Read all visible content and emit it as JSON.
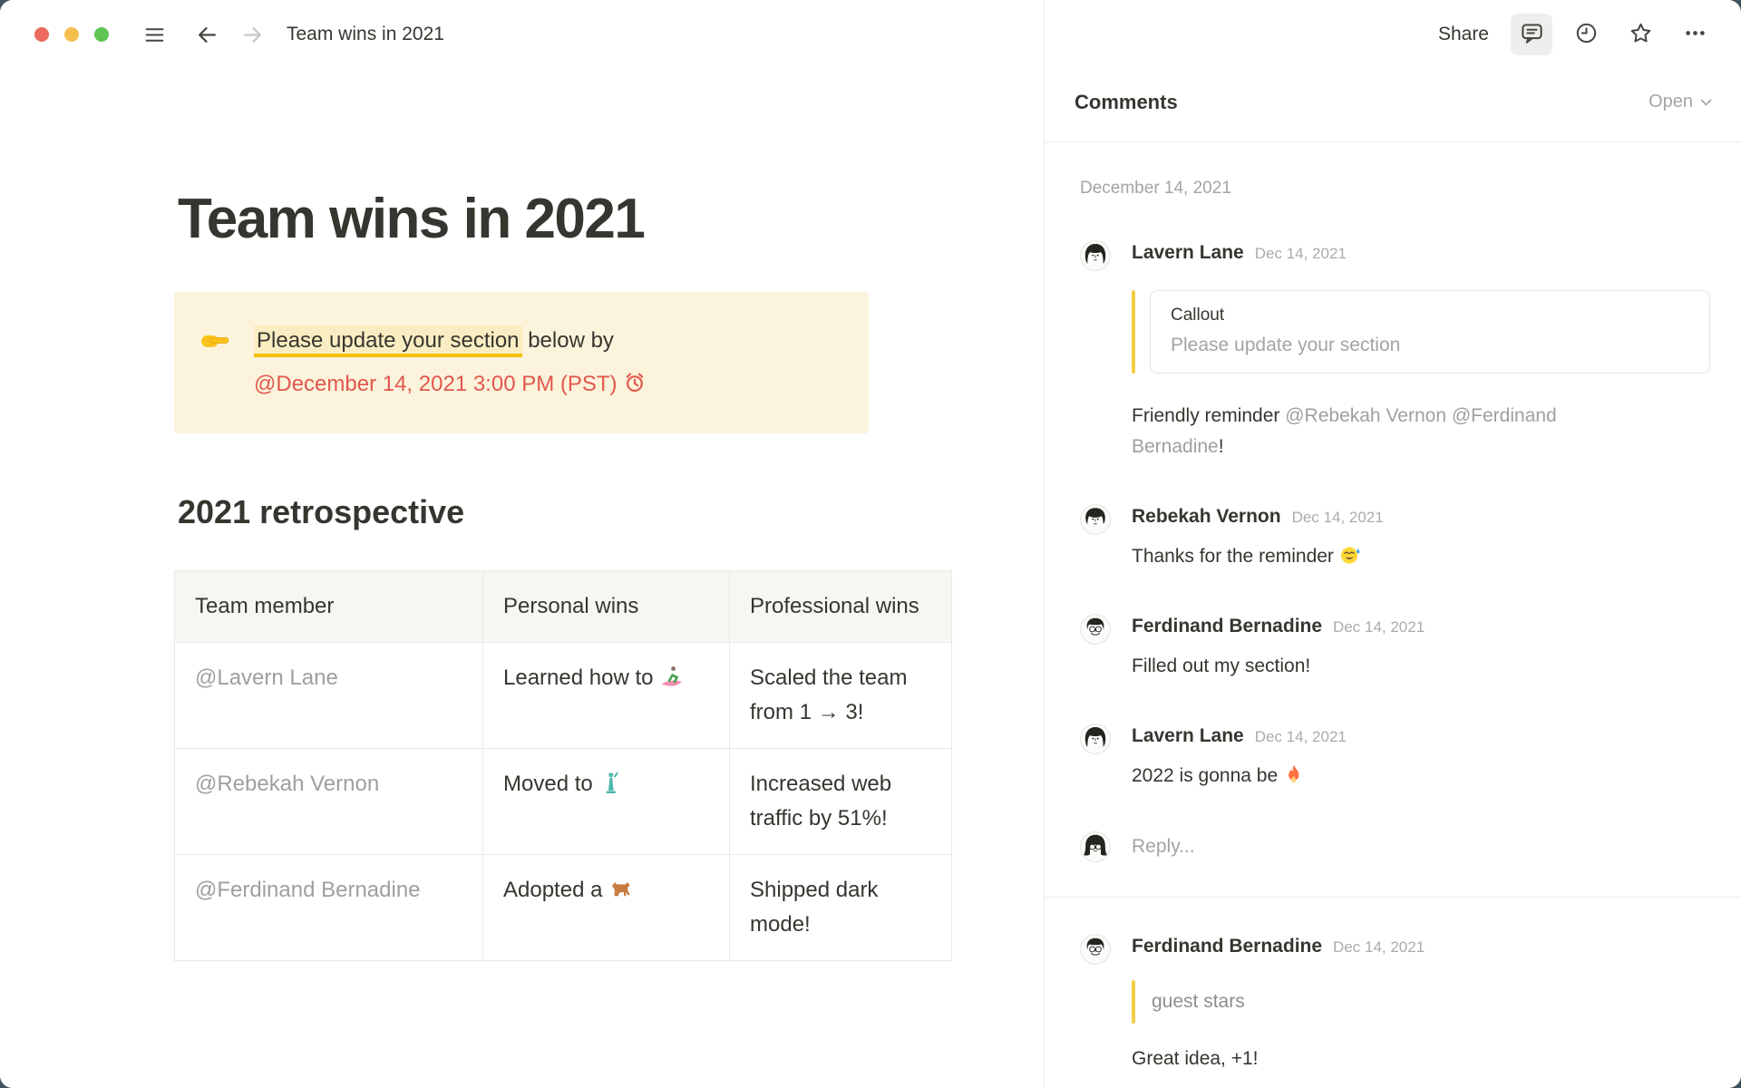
{
  "titlebar": {
    "title": "Team wins in 2021",
    "share_label": "Share"
  },
  "page": {
    "title": "Team wins in 2021",
    "callout": {
      "emoji": "👉",
      "highlighted_text": "Please update your section",
      "rest_text": " below by",
      "reminder": "@December 14, 2021 3:00 PM (PST)",
      "reminder_emoji": "⏰"
    },
    "section_heading": "2021 retrospective",
    "table": {
      "headers": [
        "Team member",
        "Personal wins",
        "Professional wins"
      ],
      "rows": [
        [
          "@Lavern Lane",
          "Learned how to 🏄",
          "Scaled the team from 1 → 3!"
        ],
        [
          "@Rebekah Vernon",
          "Moved to 🗽",
          "Increased web traffic by 51%!"
        ],
        [
          "@Ferdinand Bernadine",
          "Adopted a 🐕",
          "Shipped dark mode!"
        ]
      ]
    }
  },
  "comments_panel": {
    "title": "Comments",
    "filter_label": "Open",
    "date_header": "December 14, 2021",
    "threads": [
      {
        "comments": [
          {
            "author": "Lavern Lane",
            "date": "Dec 14, 2021",
            "avatar": "lavern",
            "quote": {
              "type": "callout",
              "title": "Callout",
              "text": "Please update your section"
            },
            "body": [
              {
                "text": "Friendly reminder "
              },
              {
                "text": "@Rebekah Vernon",
                "mention": true
              },
              {
                "text": " "
              },
              {
                "text": "@Ferdinand Bernadine",
                "mention": true
              },
              {
                "text": "!"
              }
            ]
          },
          {
            "author": "Rebekah Vernon",
            "date": "Dec 14, 2021",
            "avatar": "rebekah",
            "body": [
              {
                "text": "Thanks for the reminder 😅"
              }
            ]
          },
          {
            "author": "Ferdinand Bernadine",
            "date": "Dec 14, 2021",
            "avatar": "ferdinand",
            "body": [
              {
                "text": "Filled out my section!"
              }
            ]
          },
          {
            "author": "Lavern Lane",
            "date": "Dec 14, 2021",
            "avatar": "lavern",
            "body": [
              {
                "text": "2022 is gonna be 🔥"
              }
            ]
          }
        ],
        "reply": {
          "placeholder": "Reply...",
          "avatar": "guest"
        }
      },
      {
        "comments": [
          {
            "author": "Ferdinand Bernadine",
            "date": "Dec 14, 2021",
            "avatar": "ferdinand",
            "quote": {
              "type": "plain",
              "text": "guest stars"
            },
            "body": [
              {
                "text": "Great idea, +1!"
              }
            ]
          }
        ],
        "partial_reply": {
          "avatar": "guest"
        }
      }
    ]
  },
  "colors": {
    "text": "#37352F",
    "secondary_text": "#A5A4A1",
    "mention_gray": "#A09F9C",
    "reminder_red": "#E2574E",
    "callout_bg": "#FBF3DB",
    "highlight_bg": "#FAEDC2",
    "highlight_underline": "#F2C100",
    "quote_bar": "#F3CE49",
    "divider": "#EDECEA",
    "table_border": "#E9E9E7",
    "table_header_bg": "#F7F6F3",
    "traffic_red": "#EC6A5E",
    "traffic_yellow": "#F5BF4F",
    "traffic_green": "#61C554"
  }
}
